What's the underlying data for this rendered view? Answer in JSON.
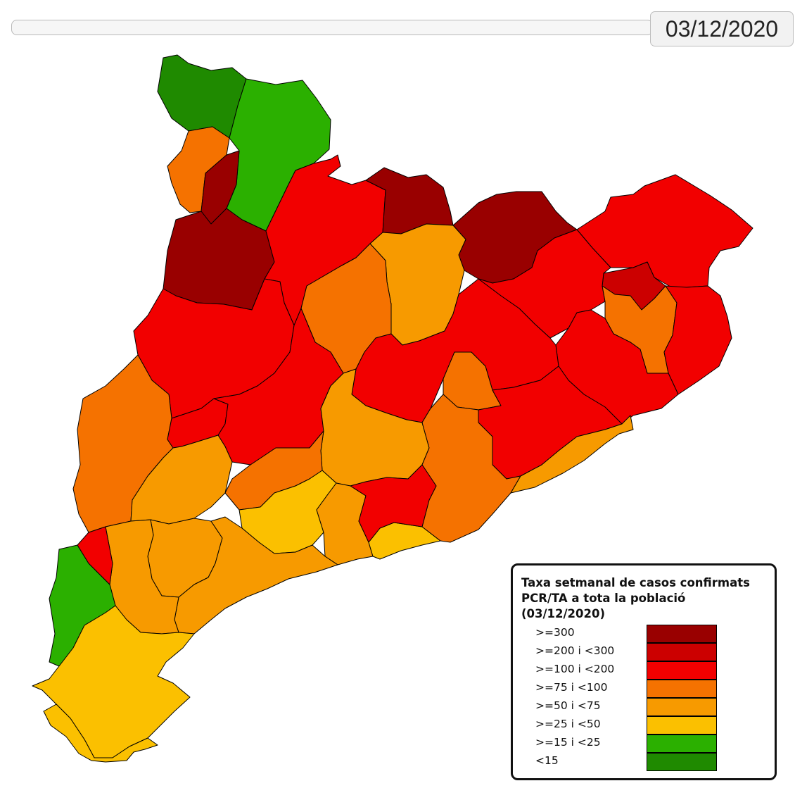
{
  "header": {
    "date_display": "03/12/2020"
  },
  "legend": {
    "title": "Taxa setmanal de casos confirmats\nPCR/TA a tota la població\n(03/12/2020)",
    "classes": [
      {
        "label": ">=300",
        "color": "#990000"
      },
      {
        "label": ">=200 i <300",
        "color": "#cc0000"
      },
      {
        "label": ">=100 i <200",
        "color": "#f20000"
      },
      {
        "label": ">=75 i <100",
        "color": "#f57200"
      },
      {
        "label": ">=50 i <75",
        "color": "#f79a00"
      },
      {
        "label": ">=25 i <50",
        "color": "#fbc000"
      },
      {
        "label": ">=15 i <25",
        "color": "#2bb000"
      },
      {
        "label": "<15",
        "color": "#1f8a00"
      }
    ]
  },
  "regions": {
    "r01": {
      "cls": 7
    },
    "r02": {
      "cls": 6
    },
    "r03": {
      "cls": 3
    },
    "r04": {
      "cls": 0
    },
    "r05": {
      "cls": 0
    },
    "r06": {
      "cls": 2
    },
    "r07": {
      "cls": 0
    },
    "r08": {
      "cls": 0
    },
    "r09": {
      "cls": 2
    },
    "r10": {
      "cls": 1
    },
    "r11": {
      "cls": 2
    },
    "r12": {
      "cls": 3
    },
    "r13": {
      "cls": 4
    },
    "r14": {
      "cls": 2
    },
    "r15": {
      "cls": 2
    },
    "r16": {
      "cls": 3
    },
    "r17": {
      "cls": 2
    },
    "r18": {
      "cls": 3
    },
    "r19": {
      "cls": 2
    },
    "r20": {
      "cls": 2
    },
    "r21": {
      "cls": 2
    },
    "r22": {
      "cls": 3
    },
    "r23": {
      "cls": 4
    },
    "r24": {
      "cls": 3
    },
    "r25": {
      "cls": 2
    },
    "r26": {
      "cls": 4
    },
    "r27": {
      "cls": 4
    },
    "r28": {
      "cls": 5
    },
    "r29": {
      "cls": 4
    },
    "r30": {
      "cls": 5
    },
    "r31": {
      "cls": 3
    },
    "r32": {
      "cls": 4
    },
    "r33": {
      "cls": 2
    },
    "r34": {
      "cls": 4
    },
    "r35": {
      "cls": 4
    },
    "r36": {
      "cls": 6
    },
    "r37": {
      "cls": 5
    },
    "r38": {
      "cls": 5
    },
    "r39": {
      "cls": 2
    }
  }
}
